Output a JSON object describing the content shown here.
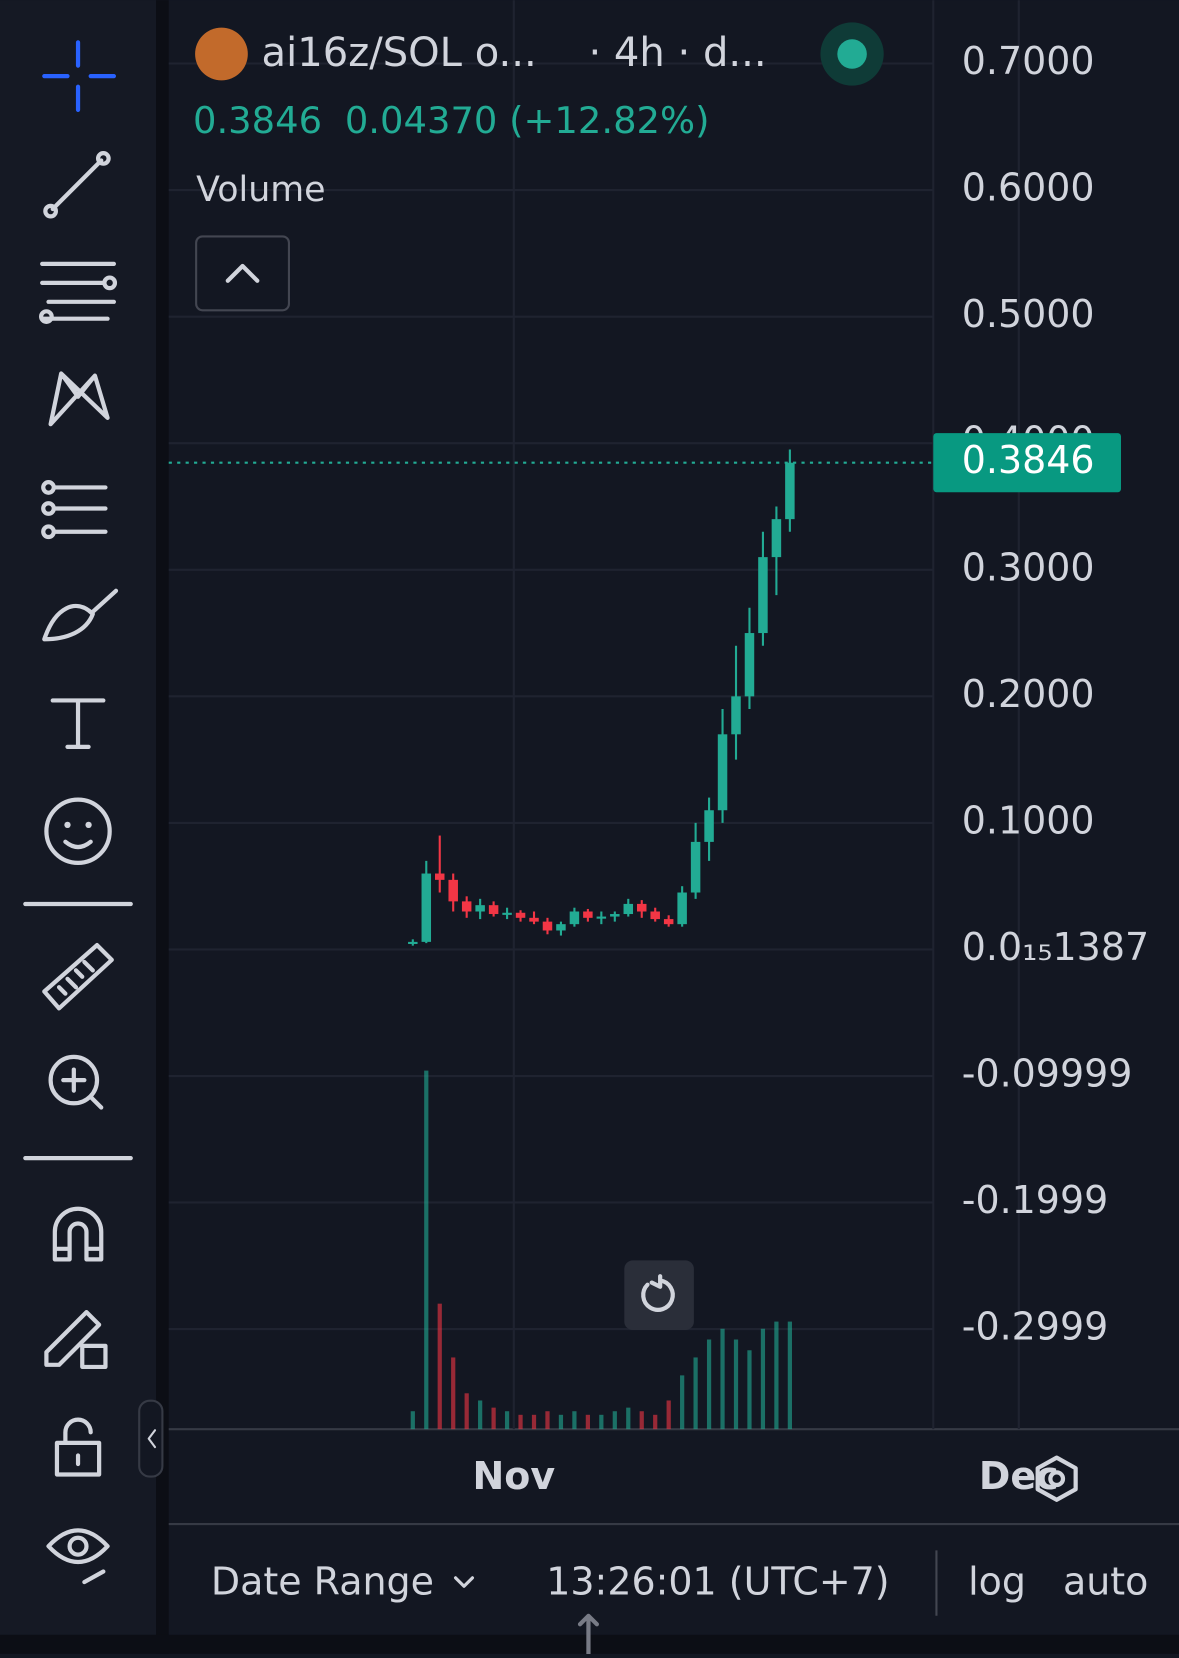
{
  "header": {
    "symbol": "ai16z/SOL o...",
    "interval": "· 4h · d...",
    "change": "0.04370 (+12.82%)",
    "indicator": "Volume"
  },
  "footer": {
    "range": "Date Range",
    "time": "13:26:01 (UTC+7)",
    "log": "log",
    "auto": "auto"
  },
  "chart_data": {
    "type": "candlestick",
    "color_up": "#22ab94",
    "color_down": "#f23645",
    "last_price": {
      "value": 0.3846,
      "label": "0.3846"
    },
    "ylim": [
      -0.379,
      0.75
    ],
    "yticks": [
      {
        "value": 0.7,
        "label": "0.7000"
      },
      {
        "value": 0.6,
        "label": "0.6000"
      },
      {
        "value": 0.5,
        "label": "0.5000"
      },
      {
        "value": 0.4,
        "label": "0.4000"
      },
      {
        "value": 0.3,
        "label": "0.3000"
      },
      {
        "value": 0.2,
        "label": "0.2000"
      },
      {
        "value": 0.1,
        "label": "0.1000"
      },
      {
        "value": 1.387e-16,
        "label": "0.0₁₅1387"
      },
      {
        "value": -0.09999,
        "label": "-0.09999"
      },
      {
        "value": -0.1999,
        "label": "-0.1999"
      },
      {
        "value": -0.2999,
        "label": "-0.2999"
      }
    ],
    "xlim": [
      -20.5,
      32.5
    ],
    "xticks": [
      {
        "value": 0,
        "label": "Nov"
      },
      {
        "value": 30,
        "label": "Dec"
      }
    ],
    "x": [
      -6,
      -5.2,
      -4.4,
      -3.6,
      -2.8,
      -2,
      -1.2,
      -0.4,
      0.4,
      1.2,
      2,
      2.8,
      3.6,
      4.4,
      5.2,
      6,
      6.8,
      7.6,
      8.4,
      9.2,
      10,
      10.8,
      11.6,
      12.4,
      13.2,
      14,
      14.8,
      15.6,
      16.4
    ],
    "open": [
      0.005,
      0.006,
      0.06,
      0.055,
      0.038,
      0.03,
      0.035,
      0.028,
      0.029,
      0.025,
      0.022,
      0.015,
      0.02,
      0.03,
      0.025,
      0.026,
      0.028,
      0.036,
      0.03,
      0.024,
      0.02,
      0.045,
      0.085,
      0.11,
      0.17,
      0.2,
      0.25,
      0.31,
      0.34
    ],
    "high": [
      0.008,
      0.07,
      0.09,
      0.06,
      0.042,
      0.04,
      0.038,
      0.033,
      0.031,
      0.03,
      0.025,
      0.022,
      0.033,
      0.032,
      0.03,
      0.03,
      0.04,
      0.039,
      0.033,
      0.027,
      0.05,
      0.1,
      0.12,
      0.19,
      0.24,
      0.27,
      0.33,
      0.35,
      0.395
    ],
    "low": [
      0.003,
      0.005,
      0.045,
      0.03,
      0.025,
      0.024,
      0.026,
      0.024,
      0.022,
      0.02,
      0.012,
      0.011,
      0.018,
      0.022,
      0.02,
      0.022,
      0.026,
      0.025,
      0.022,
      0.018,
      0.018,
      0.04,
      0.07,
      0.1,
      0.15,
      0.19,
      0.24,
      0.28,
      0.33
    ],
    "close": [
      0.006,
      0.06,
      0.055,
      0.038,
      0.03,
      0.035,
      0.028,
      0.029,
      0.025,
      0.022,
      0.015,
      0.02,
      0.03,
      0.025,
      0.026,
      0.028,
      0.036,
      0.03,
      0.024,
      0.02,
      0.045,
      0.085,
      0.11,
      0.17,
      0.2,
      0.25,
      0.31,
      0.34,
      0.3846
    ],
    "volume": [
      5,
      100,
      35,
      20,
      10,
      8,
      6,
      5,
      4,
      4,
      5,
      4,
      5,
      4,
      4,
      5,
      6,
      5,
      4,
      8,
      15,
      20,
      25,
      28,
      25,
      22,
      28,
      30,
      30
    ]
  }
}
